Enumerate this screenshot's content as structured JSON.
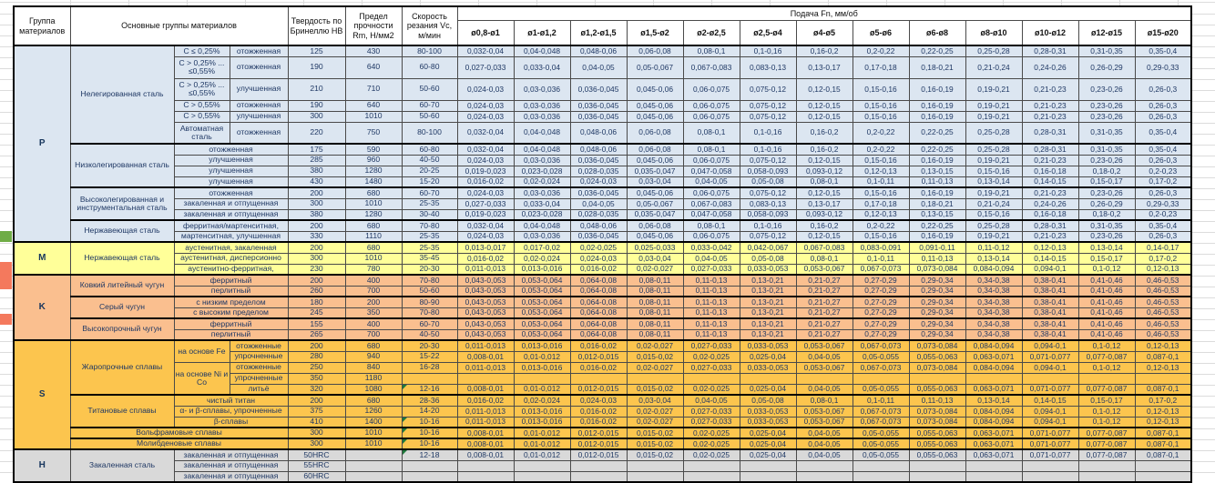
{
  "colors": {
    "section_P": "#dce6f1",
    "section_M": "#ffff99",
    "section_K": "#fabf8f",
    "section_S": "#fcc54e",
    "section_H": "#d9d9d9",
    "comment_marker": "#1e7a3c"
  },
  "table": {
    "header": {
      "group": "Группа материалов",
      "main_groups": "Основные группы материалов",
      "hardness": "Твердость по Бринеллю HB",
      "strength": "Предел прочности Rm, Н/мм2",
      "speed": "Скорость резания Vc, м/мин",
      "feed": "Подача Fn, мм/об",
      "feed_columns": [
        "ø0,8-ø1",
        "ø1-ø1,2",
        "ø1,2-ø1,5",
        "ø1,5-ø2",
        "ø2-ø2,5",
        "ø2,5-ø4",
        "ø4-ø5",
        "ø5-ø6",
        "ø6-ø8",
        "ø8-ø10",
        "ø10-ø12",
        "ø12-ø15",
        "ø15-ø20"
      ]
    },
    "feed_sets": {
      "A": [
        "0,032-0,04",
        "0,04-0,048",
        "0,048-0,06",
        "0,06-0,08",
        "0,08-0,1",
        "0,1-0,16",
        "0,16-0,2",
        "0,2-0,22",
        "0,22-0,25",
        "0,25-0,28",
        "0,28-0,31",
        "0,31-0,35",
        "0,35-0,4"
      ],
      "B": [
        "0,027-0,033",
        "0,033-0,04",
        "0,04-0,05",
        "0,05-0,067",
        "0,067-0,083",
        "0,083-0,13",
        "0,13-0,17",
        "0,17-0,18",
        "0,18-0,21",
        "0,21-0,24",
        "0,24-0,26",
        "0,26-0,29",
        "0,29-0,33"
      ],
      "C": [
        "0,024-0,03",
        "0,03-0,036",
        "0,036-0,045",
        "0,045-0,06",
        "0,06-0,075",
        "0,075-0,12",
        "0,12-0,15",
        "0,15-0,16",
        "0,16-0,19",
        "0,19-0,21",
        "0,21-0,23",
        "0,23-0,26",
        "0,26-0,3"
      ],
      "D": [
        "0,019-0,023",
        "0,023-0,028",
        "0,028-0,035",
        "0,035-0,047",
        "0,047-0,058",
        "0,058-0,093",
        "0,093-0,12",
        "0,12-0,13",
        "0,13-0,15",
        "0,15-0,16",
        "0,16-0,18",
        "0,18-0,2",
        "0,2-0,23"
      ],
      "E": [
        "0,016-0,02",
        "0,02-0,024",
        "0,024-0,03",
        "0,03-0,04",
        "0,04-0,05",
        "0,05-0,08",
        "0,08-0,1",
        "0,1-0,11",
        "0,11-0,13",
        "0,13-0,14",
        "0,14-0,15",
        "0,15-0,17",
        "0,17-0,2"
      ],
      "F": [
        "0,013-0,017",
        "0,017-0,02",
        "0,02-0,025",
        "0,025-0,033",
        "0,033-0,042",
        "0,042-0,067",
        "0,067-0,083",
        "0,083-0,091",
        "0,091-0,11",
        "0,11-0,12",
        "0,12-0,13",
        "0,13-0,14",
        "0,14-0,17"
      ],
      "G": [
        "0,011-0,013",
        "0,013-0,016",
        "0,016-0,02",
        "0,02-0,027",
        "0,027-0,033",
        "0,033-0,053",
        "0,053-0,067",
        "0,067-0,073",
        "0,073-0,084",
        "0,084-0,094",
        "0,094-0,1",
        "0,1-0,12",
        "0,12-0,13"
      ],
      "H": [
        "0,043-0,053",
        "0,053-0,064",
        "0,064-0,08",
        "0,08-0,11",
        "0,11-0,13",
        "0,13-0,21",
        "0,21-0,27",
        "0,27-0,29",
        "0,29-0,34",
        "0,34-0,38",
        "0,38-0,41",
        "0,41-0,46",
        "0,46-0,53"
      ],
      "I": [
        "0,008-0,01",
        "0,01-0,012",
        "0,012-0,015",
        "0,015-0,02",
        "0,02-0,025",
        "0,025-0,04",
        "0,04-0,05",
        "0,05-0,055",
        "0,055-0,063",
        "0,063-0,071",
        "0,071-0,077",
        "0,077-0,087",
        "0,087-0,1"
      ],
      "Z": [
        "",
        "",
        "",
        "",
        "",
        "",
        "",
        "",
        "",
        "",
        "",
        "",
        ""
      ]
    },
    "sections": [
      {
        "group": "P",
        "colorKey": "section_P",
        "rows": [
          {
            "mid": [
              {
                "t": "Нелегированная сталь",
                "rs": 6
              },
              {
                "t": "C ≤ 0,25%"
              },
              {
                "t": "отожженная"
              }
            ],
            "hb": "125",
            "rm": "430",
            "vc": "80-100",
            "f": "A"
          },
          {
            "mid": [
              {
                "t": "C > 0,25% ... ≤0,55%"
              },
              {
                "t": "отожженная"
              }
            ],
            "hb": "190",
            "rm": "640",
            "vc": "60-80",
            "f": "B",
            "tall": true
          },
          {
            "mid": [
              {
                "t": "C > 0,25% ... ≤0,55%"
              },
              {
                "t": "улучшенная"
              }
            ],
            "hb": "210",
            "rm": "710",
            "vc": "50-60",
            "f": "C",
            "tall": true
          },
          {
            "mid": [
              {
                "t": "C > 0,55%"
              },
              {
                "t": "отожженная"
              }
            ],
            "hb": "190",
            "rm": "640",
            "vc": "60-70",
            "f": "C"
          },
          {
            "mid": [
              {
                "t": "C > 0,55%"
              },
              {
                "t": "улучшенная"
              }
            ],
            "hb": "300",
            "rm": "1010",
            "vc": "50-60",
            "f": "C"
          },
          {
            "mid": [
              {
                "t": "Автоматная сталь"
              },
              {
                "t": "отожженная"
              }
            ],
            "hb": "220",
            "rm": "750",
            "vc": "80-100",
            "f": "A",
            "tall": true
          },
          {
            "mid": [
              {
                "t": "Низколегированная сталь",
                "rs": 4
              },
              {
                "t": "отожженная",
                "cs": 2
              }
            ],
            "hb": "175",
            "rm": "590",
            "vc": "60-80",
            "f": "A",
            "bt": true
          },
          {
            "mid": [
              {
                "t": "улучшенная",
                "cs": 2
              }
            ],
            "hb": "285",
            "rm": "960",
            "vc": "40-50",
            "f": "C"
          },
          {
            "mid": [
              {
                "t": "улучшенная",
                "cs": 2
              }
            ],
            "hb": "380",
            "rm": "1280",
            "vc": "20-25",
            "f": "D"
          },
          {
            "mid": [
              {
                "t": "улучшенная",
                "cs": 2
              }
            ],
            "hb": "430",
            "rm": "1480",
            "vc": "15-20",
            "f": "E"
          },
          {
            "mid": [
              {
                "t": "Высоколегированная и инструментальная сталь",
                "rs": 3
              },
              {
                "t": "отожженная",
                "cs": 2
              }
            ],
            "hb": "200",
            "rm": "680",
            "vc": "60-70",
            "f": "C",
            "bt": true
          },
          {
            "mid": [
              {
                "t": "закаленная и отпущенная",
                "cs": 2
              }
            ],
            "hb": "300",
            "rm": "1010",
            "vc": "25-35",
            "f": "B"
          },
          {
            "mid": [
              {
                "t": "закаленная и отпущенная",
                "cs": 2
              }
            ],
            "hb": "380",
            "rm": "1280",
            "vc": "30-40",
            "f": "D"
          },
          {
            "mid": [
              {
                "t": "Нержавеющая сталь",
                "rs": 2
              },
              {
                "t": "ферритная/мартенситная,",
                "cs": 2
              }
            ],
            "hb": "200",
            "rm": "680",
            "vc": "70-80",
            "f": "A",
            "bt": true
          },
          {
            "mid": [
              {
                "t": "мартенситная, улучшенная",
                "cs": 2
              }
            ],
            "hb": "330",
            "rm": "1110",
            "vc": "25-35",
            "f": "C"
          }
        ]
      },
      {
        "group": "M",
        "colorKey": "section_M",
        "rows": [
          {
            "mid": [
              {
                "t": "Нержавеющая сталь",
                "rs": 3
              },
              {
                "t": "аустенитная, закаленная",
                "cs": 2
              }
            ],
            "hb": "200",
            "rm": "680",
            "vc": "25-35",
            "f": "F"
          },
          {
            "mid": [
              {
                "t": "аустенитная, дисперсионно",
                "cs": 2
              }
            ],
            "hb": "300",
            "rm": "1010",
            "vc": "35-45",
            "f": "E"
          },
          {
            "mid": [
              {
                "t": "аустенитно-ферритная,",
                "cs": 2
              }
            ],
            "hb": "230",
            "rm": "780",
            "vc": "20-30",
            "f": "G"
          }
        ]
      },
      {
        "group": "K",
        "colorKey": "section_K",
        "rows": [
          {
            "mid": [
              {
                "t": "Ковкий литейный чугун",
                "rs": 2
              },
              {
                "t": "ферритный",
                "cs": 2
              }
            ],
            "hb": "200",
            "rm": "400",
            "vc": "70-80",
            "f": "H"
          },
          {
            "mid": [
              {
                "t": "перлитный",
                "cs": 2
              }
            ],
            "hb": "260",
            "rm": "700",
            "vc": "50-60",
            "f": "H"
          },
          {
            "mid": [
              {
                "t": "Серый чугун",
                "rs": 2
              },
              {
                "t": "с низким пределом",
                "cs": 2
              }
            ],
            "hb": "180",
            "rm": "200",
            "vc": "80-90",
            "f": "H",
            "bt": true
          },
          {
            "mid": [
              {
                "t": "с высоким пределом",
                "cs": 2
              }
            ],
            "hb": "245",
            "rm": "350",
            "vc": "70-80",
            "f": "H"
          },
          {
            "mid": [
              {
                "t": "Высокопрочный чугун",
                "rs": 2
              },
              {
                "t": "ферритный",
                "cs": 2
              }
            ],
            "hb": "155",
            "rm": "400",
            "vc": "60-70",
            "f": "H",
            "bt": true
          },
          {
            "mid": [
              {
                "t": "перлитный",
                "cs": 2
              }
            ],
            "hb": "265",
            "rm": "700",
            "vc": "40-50",
            "f": "H"
          }
        ]
      },
      {
        "group": "S",
        "colorKey": "section_S",
        "rows": [
          {
            "mid": [
              {
                "t": "Жаропрочные сплавы",
                "rs": 5
              },
              {
                "t": "на основе Fe",
                "rs": 2
              },
              {
                "t": "отожженные"
              }
            ],
            "hb": "200",
            "rm": "680",
            "vc": "20-30",
            "f": "G"
          },
          {
            "mid": [
              {
                "t": "упрочненные"
              }
            ],
            "hb": "280",
            "rm": "940",
            "vc": "15-22",
            "f": "I"
          },
          {
            "mid": [
              {
                "t": "на основе Ni и Co",
                "rs": 3
              },
              {
                "t": "отожженные"
              }
            ],
            "hb": "250",
            "rm": "840",
            "vc": "16-28",
            "f": "G"
          },
          {
            "mid": [
              {
                "t": "упрочненные"
              }
            ],
            "hb": "350",
            "rm": "1180",
            "vc": "",
            "f": "Z"
          },
          {
            "mid": [
              {
                "t": "литьё"
              }
            ],
            "hb": "320",
            "rm": "1080",
            "vc": "12-16",
            "note": true,
            "f": "I"
          },
          {
            "mid": [
              {
                "t": "Титановые сплавы",
                "rs": 3
              },
              {
                "t": "чистый титан",
                "cs": 2
              }
            ],
            "hb": "200",
            "rm": "680",
            "vc": "28-36",
            "f": "E",
            "bt": true
          },
          {
            "mid": [
              {
                "t": "α- и β-сплавы, упрочненные",
                "cs": 2
              }
            ],
            "hb": "375",
            "rm": "1260",
            "vc": "14-20",
            "f": "G"
          },
          {
            "mid": [
              {
                "t": "β-сплавы",
                "cs": 2
              }
            ],
            "hb": "410",
            "rm": "1400",
            "vc": "10-16",
            "note": true,
            "f": "G"
          },
          {
            "mid": [
              {
                "t": "Вольфрамовые сплавы",
                "cs": 3
              }
            ],
            "hb": "300",
            "rm": "1010",
            "vc": "10-16",
            "note": true,
            "f": "I",
            "bt": true
          },
          {
            "mid": [
              {
                "t": "Молибденовые сплавы",
                "cs": 3
              }
            ],
            "hb": "300",
            "rm": "1010",
            "vc": "10-16",
            "note": true,
            "f": "I",
            "bt": true
          }
        ]
      },
      {
        "group": "H",
        "colorKey": "section_H",
        "rows": [
          {
            "mid": [
              {
                "t": "Закаленная сталь",
                "rs": 3
              },
              {
                "t": "закаленная и отпущенная",
                "cs": 2
              }
            ],
            "hb": "50HRC",
            "rm": "",
            "vc": "12-18",
            "note": true,
            "f": "I"
          },
          {
            "mid": [
              {
                "t": "закаленная и отпущенная",
                "cs": 2
              }
            ],
            "hb": "55HRC",
            "rm": "",
            "vc": "",
            "f": "Z"
          },
          {
            "mid": [
              {
                "t": "закаленная и отпущенная",
                "cs": 2
              }
            ],
            "hb": "60HRC",
            "rm": "",
            "vc": "",
            "f": "Z"
          }
        ]
      }
    ]
  }
}
